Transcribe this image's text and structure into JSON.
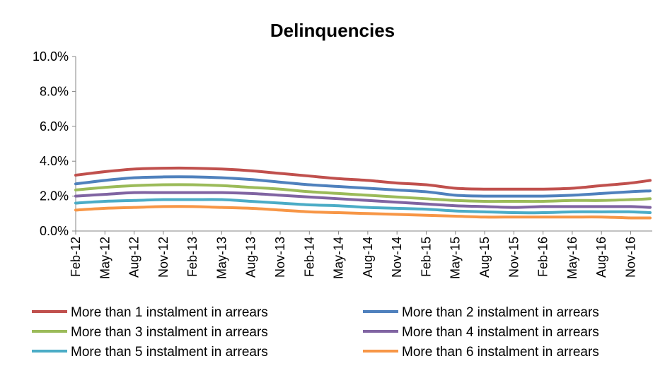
{
  "chart_data": {
    "type": "line",
    "title": "Delinquencies",
    "xlabel": "",
    "ylabel": "",
    "ylim": [
      0,
      10
    ],
    "y_tick_labels": [
      "0.0%",
      "2.0%",
      "4.0%",
      "6.0%",
      "8.0%",
      "10.0%"
    ],
    "y_tick_values": [
      0,
      2,
      4,
      6,
      8,
      10
    ],
    "x_tick_labels": [
      "Feb-12",
      "May-12",
      "Aug-12",
      "Nov-12",
      "Feb-13",
      "May-13",
      "Aug-13",
      "Nov-13",
      "Feb-14",
      "May-14",
      "Aug-14",
      "Nov-14",
      "Feb-15",
      "May-15",
      "Aug-15",
      "Nov-15",
      "Feb-16",
      "May-16",
      "Aug-16",
      "Nov-16"
    ],
    "x_start": "Feb-12",
    "x_end": "Jan-17",
    "grid": false,
    "legend_position": "bottom",
    "series": [
      {
        "name": "More than 1 instalment in arrears",
        "color": "#C0504D",
        "x": [
          "Feb-12",
          "May-12",
          "Aug-12",
          "Nov-12",
          "Feb-13",
          "May-13",
          "Aug-13",
          "Nov-13",
          "Feb-14",
          "May-14",
          "Aug-14",
          "Nov-14",
          "Feb-15",
          "May-15",
          "Aug-15",
          "Nov-15",
          "Feb-16",
          "May-16",
          "Aug-16",
          "Nov-16",
          "Jan-17"
        ],
        "values": [
          3.2,
          3.4,
          3.55,
          3.6,
          3.6,
          3.55,
          3.45,
          3.3,
          3.15,
          3.0,
          2.9,
          2.75,
          2.65,
          2.45,
          2.4,
          2.4,
          2.4,
          2.45,
          2.6,
          2.75,
          2.9
        ]
      },
      {
        "name": "More than 2 instalment in arrears",
        "color": "#4F81BD",
        "x": [
          "Feb-12",
          "May-12",
          "Aug-12",
          "Nov-12",
          "Feb-13",
          "May-13",
          "Aug-13",
          "Nov-13",
          "Feb-14",
          "May-14",
          "Aug-14",
          "Nov-14",
          "Feb-15",
          "May-15",
          "Aug-15",
          "Nov-15",
          "Feb-16",
          "May-16",
          "Aug-16",
          "Nov-16",
          "Jan-17"
        ],
        "values": [
          2.7,
          2.9,
          3.05,
          3.1,
          3.1,
          3.05,
          2.95,
          2.8,
          2.65,
          2.55,
          2.45,
          2.35,
          2.25,
          2.05,
          2.0,
          2.0,
          2.0,
          2.05,
          2.15,
          2.25,
          2.3
        ]
      },
      {
        "name": "More than 3 instalment in arrears",
        "color": "#9BBB59",
        "x": [
          "Feb-12",
          "May-12",
          "Aug-12",
          "Nov-12",
          "Feb-13",
          "May-13",
          "Aug-13",
          "Nov-13",
          "Feb-14",
          "May-14",
          "Aug-14",
          "Nov-14",
          "Feb-15",
          "May-15",
          "Aug-15",
          "Nov-15",
          "Feb-16",
          "May-16",
          "Aug-16",
          "Nov-16",
          "Jan-17"
        ],
        "values": [
          2.35,
          2.5,
          2.6,
          2.65,
          2.65,
          2.6,
          2.5,
          2.4,
          2.25,
          2.15,
          2.05,
          1.95,
          1.85,
          1.75,
          1.7,
          1.7,
          1.7,
          1.75,
          1.75,
          1.8,
          1.85
        ]
      },
      {
        "name": "More than 4 instalment in arrears",
        "color": "#8064A2",
        "x": [
          "Feb-12",
          "May-12",
          "Aug-12",
          "Nov-12",
          "Feb-13",
          "May-13",
          "Aug-13",
          "Nov-13",
          "Feb-14",
          "May-14",
          "Aug-14",
          "Nov-14",
          "Feb-15",
          "May-15",
          "Aug-15",
          "Nov-15",
          "Feb-16",
          "May-16",
          "Aug-16",
          "Nov-16",
          "Jan-17"
        ],
        "values": [
          2.0,
          2.1,
          2.2,
          2.2,
          2.2,
          2.2,
          2.15,
          2.05,
          1.95,
          1.85,
          1.75,
          1.65,
          1.55,
          1.45,
          1.4,
          1.35,
          1.4,
          1.4,
          1.4,
          1.4,
          1.35
        ]
      },
      {
        "name": "More than 5 instalment in arrears",
        "color": "#4BACC6",
        "x": [
          "Feb-12",
          "May-12",
          "Aug-12",
          "Nov-12",
          "Feb-13",
          "May-13",
          "Aug-13",
          "Nov-13",
          "Feb-14",
          "May-14",
          "Aug-14",
          "Nov-14",
          "Feb-15",
          "May-15",
          "Aug-15",
          "Nov-15",
          "Feb-16",
          "May-16",
          "Aug-16",
          "Nov-16",
          "Jan-17"
        ],
        "values": [
          1.6,
          1.7,
          1.75,
          1.8,
          1.8,
          1.8,
          1.7,
          1.6,
          1.5,
          1.45,
          1.35,
          1.3,
          1.25,
          1.15,
          1.1,
          1.05,
          1.05,
          1.1,
          1.1,
          1.1,
          1.05
        ]
      },
      {
        "name": "More than 6 instalment in arrears",
        "color": "#F79646",
        "x": [
          "Feb-12",
          "May-12",
          "Aug-12",
          "Nov-12",
          "Feb-13",
          "May-13",
          "Aug-13",
          "Nov-13",
          "Feb-14",
          "May-14",
          "Aug-14",
          "Nov-14",
          "Feb-15",
          "May-15",
          "Aug-15",
          "Nov-15",
          "Feb-16",
          "May-16",
          "Aug-16",
          "Nov-16",
          "Jan-17"
        ],
        "values": [
          1.2,
          1.3,
          1.35,
          1.4,
          1.4,
          1.35,
          1.3,
          1.2,
          1.1,
          1.05,
          1.0,
          0.95,
          0.9,
          0.85,
          0.8,
          0.8,
          0.8,
          0.8,
          0.8,
          0.75,
          0.75
        ]
      }
    ]
  }
}
